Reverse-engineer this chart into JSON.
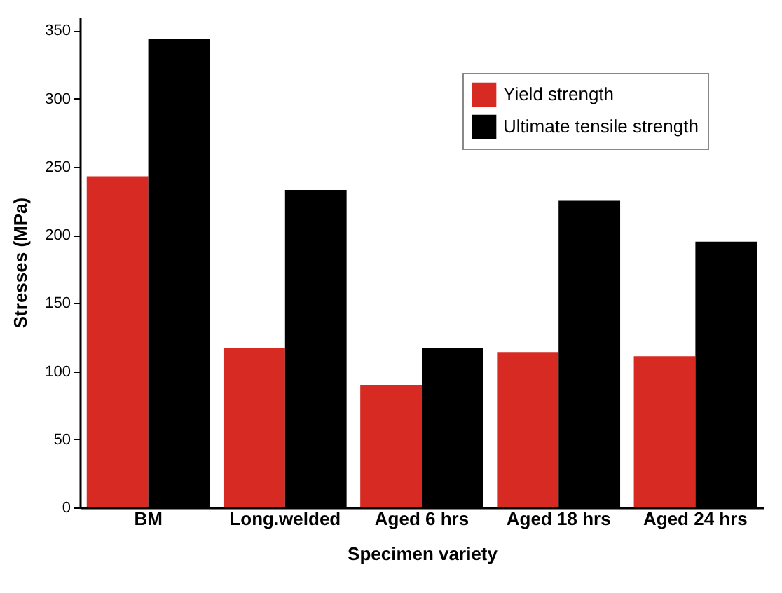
{
  "chart_data": {
    "type": "bar",
    "xlabel": "Specimen variety",
    "ylabel": "Stresses (MPa)",
    "categories": [
      "BM",
      "Long.welded",
      "Aged 6 hrs",
      "Aged 18 hrs",
      "Aged 24 hrs"
    ],
    "series": [
      {
        "name": "Yield strength",
        "color": "#d62a22",
        "values": [
          243,
          117,
          90,
          114,
          111
        ]
      },
      {
        "name": "Ultimate tensile strength",
        "color": "#000000",
        "values": [
          344,
          233,
          117,
          225,
          195
        ]
      }
    ],
    "ylim": [
      0,
      360
    ],
    "yticks": [
      0,
      50,
      100,
      150,
      200,
      250,
      300,
      350
    ],
    "grid": false,
    "legend": "top right"
  }
}
